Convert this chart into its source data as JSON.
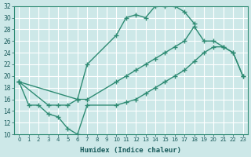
{
  "xlabel": "Humidex (Indice chaleur)",
  "xlim": [
    -0.5,
    23.5
  ],
  "ylim": [
    10,
    32
  ],
  "yticks": [
    10,
    12,
    14,
    16,
    18,
    20,
    22,
    24,
    26,
    28,
    30,
    32
  ],
  "xticks": [
    0,
    1,
    2,
    3,
    4,
    5,
    6,
    7,
    8,
    9,
    10,
    11,
    12,
    13,
    14,
    15,
    16,
    17,
    18,
    19,
    20,
    21,
    22,
    23
  ],
  "line_color": "#2e8b73",
  "bg_color": "#cde8e8",
  "grid_color": "#ffffff",
  "curve_top_x": [
    0,
    3,
    4,
    5,
    6,
    7,
    10,
    11,
    12,
    13,
    14,
    15,
    16,
    17,
    18
  ],
  "curve_top_y": [
    19,
    15,
    15,
    15,
    16,
    22,
    27,
    30,
    30.5,
    30,
    32,
    32,
    32,
    31,
    29
  ],
  "curve_mid_x": [
    0,
    6,
    7,
    10,
    11,
    12,
    13,
    14,
    15,
    16,
    17,
    18,
    19,
    20,
    21,
    22,
    23
  ],
  "curve_mid_y": [
    19,
    16,
    16,
    19,
    20,
    21,
    22,
    23,
    24,
    25,
    26,
    28.5,
    26,
    26,
    25,
    24,
    20
  ],
  "curve_bot_x": [
    0,
    1,
    2,
    3,
    4,
    5,
    6,
    7,
    10,
    11,
    12,
    13,
    14,
    15,
    16,
    17,
    18,
    19,
    20,
    21,
    22,
    23
  ],
  "curve_bot_y": [
    19,
    15,
    15,
    13.5,
    13,
    11,
    10,
    15,
    15,
    15.5,
    16,
    17,
    18,
    19,
    20,
    21,
    22.5,
    24,
    25,
    25,
    24,
    20
  ],
  "marker": "+",
  "markersize": 4,
  "linewidth": 1.0
}
